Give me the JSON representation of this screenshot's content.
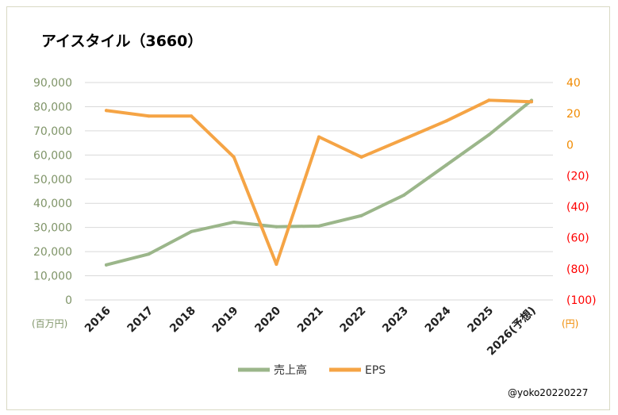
{
  "chart_data": {
    "type": "line",
    "title": "アイスタイル（3660）",
    "categories": [
      "2016",
      "2017",
      "2018",
      "2019",
      "2020",
      "2021",
      "2022",
      "2023",
      "2024",
      "2025",
      "2026(予想)"
    ],
    "series": [
      {
        "name": "売上高",
        "axis": "left",
        "color": "#9bb68a",
        "values": [
          14500,
          19000,
          28300,
          32200,
          30300,
          30600,
          34900,
          43400,
          55900,
          68400,
          82600
        ]
      },
      {
        "name": "EPS",
        "axis": "right",
        "color": "#f5a445",
        "values": [
          22,
          18.4,
          18.4,
          -8,
          -77,
          5,
          -8,
          3.6,
          15.3,
          28.6,
          27.6
        ]
      }
    ],
    "left_axis": {
      "unit": "(百万円)",
      "ylim": [
        0,
        90000
      ],
      "ticks": [
        "0",
        "10,000",
        "20,000",
        "30,000",
        "40,000",
        "50,000",
        "60,000",
        "70,000",
        "80,000",
        "90,000"
      ]
    },
    "right_axis": {
      "unit": "(円)",
      "ylim": [
        -100,
        40
      ],
      "ticks": [
        "(100)",
        "(80)",
        "(60)",
        "(40)",
        "(20)",
        "0",
        "20",
        "40"
      ]
    },
    "grid": true,
    "legend": "bottom",
    "credit": "@yoko20220227",
    "colors": {
      "left_tick": "#7f9468",
      "right_pos": "#f08a00",
      "right_neg": "#ff0000",
      "grid": "#d9d9d9"
    }
  }
}
